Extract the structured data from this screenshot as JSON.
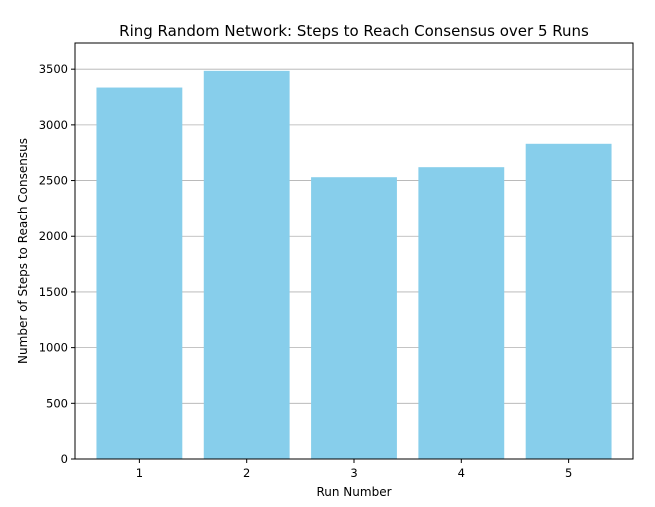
{
  "chart_data": {
    "type": "bar",
    "title": "Ring Random Network: Steps to Reach Consensus over 5 Runs",
    "xlabel": "Run Number",
    "ylabel": "Number of Steps to Reach Consensus",
    "categories": [
      "1",
      "2",
      "3",
      "4",
      "5"
    ],
    "values": [
      3335,
      3485,
      2530,
      2620,
      2830
    ],
    "ylim": [
      0,
      3735
    ],
    "yticks": [
      0,
      500,
      1000,
      1500,
      2000,
      2500,
      3000,
      3500
    ],
    "ytick_labels": [
      "0",
      "500",
      "1000",
      "1500",
      "2000",
      "2500",
      "3000",
      "3500"
    ],
    "grid": "y",
    "bar_color": "#87ceeb"
  }
}
